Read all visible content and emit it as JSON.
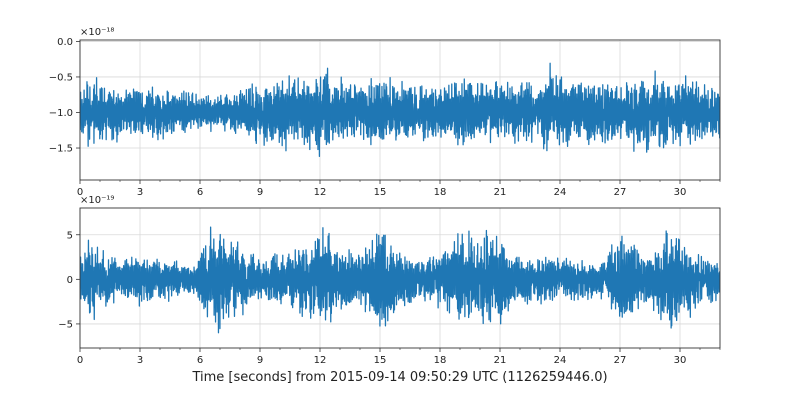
{
  "figure": {
    "xlabel": "Time [seconds] from 2015-09-14 09:50:29 UTC (1126259446.0)"
  },
  "chart_data": [
    {
      "type": "line",
      "name": "top-panel",
      "offset_text": "×10⁻¹⁸",
      "xlim": [
        0,
        32
      ],
      "ylim": [
        -1.95,
        0.02
      ],
      "xticks": [
        0,
        3,
        6,
        9,
        12,
        15,
        18,
        21,
        24,
        27,
        30
      ],
      "xtick_labels": [
        "0",
        "3",
        "6",
        "9",
        "12",
        "15",
        "18",
        "21",
        "24",
        "27",
        "30"
      ],
      "yticks": [
        0.0,
        -0.5,
        -1.0,
        -1.5
      ],
      "ytick_labels": [
        "0.0",
        "−0.5",
        "−1.0",
        "−1.5"
      ],
      "grid": true,
      "series": [
        {
          "color": "#1f77b4",
          "mean": -1.0,
          "envelope_amplitude": [
            [
              0.0,
              0.48
            ],
            [
              1.0,
              0.55
            ],
            [
              2.0,
              0.45
            ],
            [
              3.0,
              0.4
            ],
            [
              4.0,
              0.42
            ],
            [
              5.0,
              0.38
            ],
            [
              6.0,
              0.32
            ],
            [
              7.0,
              0.3
            ],
            [
              8.0,
              0.35
            ],
            [
              9.0,
              0.55
            ],
            [
              10.0,
              0.6
            ],
            [
              11.0,
              0.55
            ],
            [
              12.0,
              0.78
            ],
            [
              13.0,
              0.55
            ],
            [
              14.0,
              0.45
            ],
            [
              15.0,
              0.62
            ],
            [
              16.0,
              0.52
            ],
            [
              17.0,
              0.48
            ],
            [
              18.0,
              0.42
            ],
            [
              19.0,
              0.5
            ],
            [
              20.0,
              0.55
            ],
            [
              21.0,
              0.55
            ],
            [
              22.0,
              0.5
            ],
            [
              23.0,
              0.55
            ],
            [
              23.5,
              0.85
            ],
            [
              24.0,
              0.65
            ],
            [
              25.0,
              0.55
            ],
            [
              26.0,
              0.48
            ],
            [
              27.0,
              0.55
            ],
            [
              28.0,
              0.58
            ],
            [
              29.0,
              0.62
            ],
            [
              30.0,
              0.6
            ],
            [
              31.0,
              0.52
            ],
            [
              32.0,
              0.45
            ]
          ]
        }
      ]
    },
    {
      "type": "line",
      "name": "bottom-panel",
      "offset_text": "×10⁻¹⁹",
      "xlim": [
        0,
        32
      ],
      "ylim": [
        -7.7,
        8.0
      ],
      "xticks": [
        0,
        3,
        6,
        9,
        12,
        15,
        18,
        21,
        24,
        27,
        30
      ],
      "xtick_labels": [
        "0",
        "3",
        "6",
        "9",
        "12",
        "15",
        "18",
        "21",
        "24",
        "27",
        "30"
      ],
      "yticks": [
        5,
        0,
        -5
      ],
      "ytick_labels": [
        "5",
        "0",
        "−5"
      ],
      "grid": true,
      "series": [
        {
          "color": "#1f77b4",
          "mean": 0.0,
          "envelope_amplitude": [
            [
              0.0,
              3.5
            ],
            [
              0.5,
              5.5
            ],
            [
              1.0,
              4.0
            ],
            [
              2.0,
              2.5
            ],
            [
              3.0,
              3.5
            ],
            [
              4.0,
              2.8
            ],
            [
              5.0,
              2.5
            ],
            [
              5.8,
              2.0
            ],
            [
              6.5,
              6.5
            ],
            [
              7.0,
              7.0
            ],
            [
              8.0,
              4.5
            ],
            [
              9.0,
              2.5
            ],
            [
              10.0,
              3.5
            ],
            [
              11.0,
              4.5
            ],
            [
              12.0,
              6.5
            ],
            [
              12.3,
              6.8
            ],
            [
              13.0,
              4.0
            ],
            [
              14.0,
              3.5
            ],
            [
              15.0,
              7.0
            ],
            [
              15.5,
              6.5
            ],
            [
              16.0,
              4.0
            ],
            [
              17.0,
              3.0
            ],
            [
              18.0,
              3.5
            ],
            [
              19.0,
              6.0
            ],
            [
              20.0,
              5.5
            ],
            [
              21.0,
              7.5
            ],
            [
              21.5,
              4.0
            ],
            [
              22.0,
              3.0
            ],
            [
              23.0,
              3.5
            ],
            [
              24.0,
              3.0
            ],
            [
              25.0,
              2.5
            ],
            [
              26.0,
              2.5
            ],
            [
              27.0,
              6.0
            ],
            [
              27.5,
              5.0
            ],
            [
              28.0,
              3.5
            ],
            [
              29.0,
              5.0
            ],
            [
              29.5,
              6.5
            ],
            [
              30.0,
              6.0
            ],
            [
              31.0,
              3.5
            ],
            [
              32.0,
              2.5
            ]
          ]
        }
      ]
    }
  ]
}
